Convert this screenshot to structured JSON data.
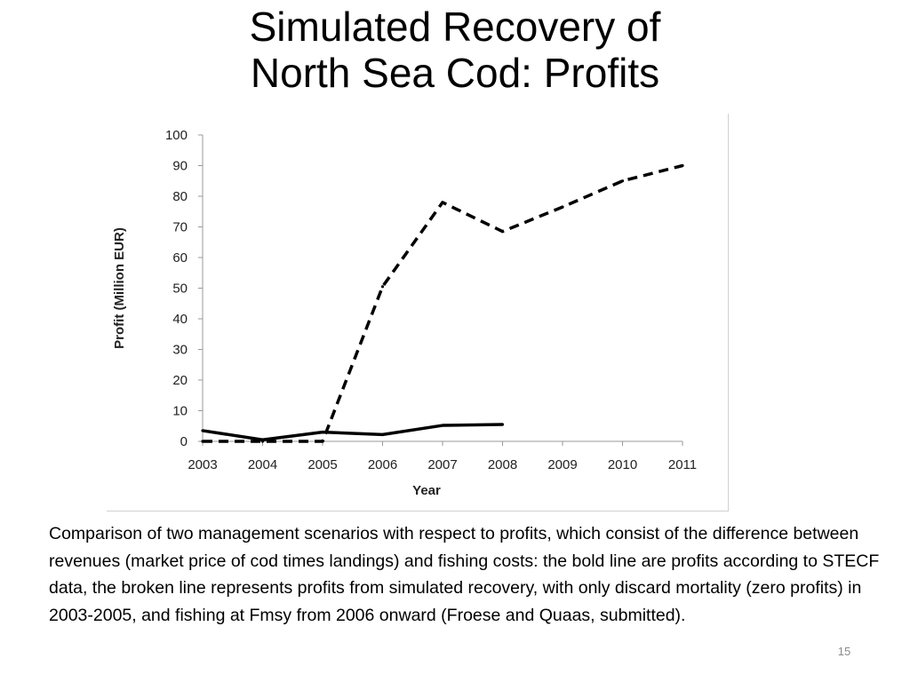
{
  "slide": {
    "title_lines": [
      "Simulated Recovery of",
      "North Sea Cod: Profits"
    ],
    "caption": "Comparison of two management scenarios with respect to profits, which consist of the difference between revenues (market price of cod times landings) and fishing costs: the bold line are profits according to STECF data, the broken line represents profits from simulated recovery, with only discard mortality (zero profits) in 2003-2005, and fishing at Fmsy from 2006 onward (Froese and Quaas, submitted).",
    "slide_number": "15"
  },
  "chart_data": {
    "type": "line",
    "title": "",
    "xlabel": "Year",
    "ylabel": "Profit (Million EUR)",
    "categories": [
      "2003",
      "2004",
      "2005",
      "2006",
      "2007",
      "2008",
      "2009",
      "2010",
      "2011"
    ],
    "ylim": [
      0,
      100
    ],
    "yticks": [
      0,
      10,
      20,
      30,
      40,
      50,
      60,
      70,
      80,
      90,
      100
    ],
    "grid": false,
    "legend": "none",
    "series": [
      {
        "style": "solid",
        "color": "#000000",
        "values": [
          3.5,
          0.5,
          3,
          2.2,
          5.2,
          5.5,
          null,
          null,
          null
        ]
      },
      {
        "style": "dashed",
        "color": "#000000",
        "values": [
          0,
          0,
          0,
          50.5,
          78,
          68.5,
          76.5,
          85,
          90
        ]
      }
    ]
  }
}
